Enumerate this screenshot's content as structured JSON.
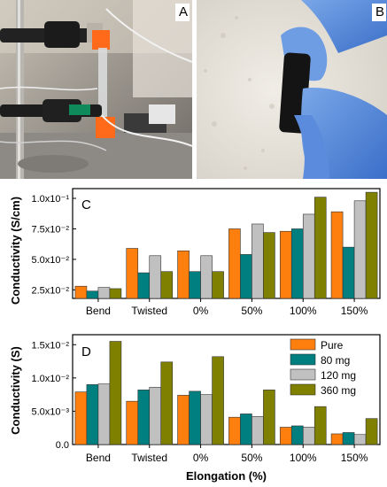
{
  "panels": {
    "a": {
      "letter": "A"
    },
    "b": {
      "letter": "B"
    }
  },
  "colors": {
    "series": [
      "#ff7f0e",
      "#007f80",
      "#c0c0c0",
      "#808000"
    ],
    "bar_stroke": "#333333"
  },
  "chart_data": [
    {
      "panel": "C",
      "type": "bar",
      "categories": [
        "Bend",
        "Twisted",
        "0%",
        "50%",
        "100%",
        "150%"
      ],
      "series": [
        {
          "name": "Pure",
          "values": [
            0.028,
            0.059,
            0.057,
            0.075,
            0.073,
            0.089
          ]
        },
        {
          "name": "80 mg",
          "values": [
            0.024,
            0.039,
            0.04,
            0.054,
            0.075,
            0.06
          ]
        },
        {
          "name": "120 mg",
          "values": [
            0.027,
            0.053,
            0.053,
            0.079,
            0.087,
            0.098
          ]
        },
        {
          "name": "360 mg",
          "values": [
            0.026,
            0.04,
            0.04,
            0.072,
            0.101,
            0.105
          ]
        }
      ],
      "ylabel": "Conductivity (S/cm)",
      "ylim": [
        0.018,
        0.108
      ],
      "yticks": [
        {
          "value": 0.025,
          "label": "2.5x10⁻²"
        },
        {
          "value": 0.05,
          "label": "5.0x10⁻²"
        },
        {
          "value": 0.075,
          "label": "7.5x10⁻²"
        },
        {
          "value": 0.1,
          "label": "1.0x10⁻¹"
        }
      ],
      "grid": false,
      "legend": "none"
    },
    {
      "panel": "D",
      "type": "bar",
      "categories": [
        "Bend",
        "Twisted",
        "0%",
        "50%",
        "100%",
        "150%"
      ],
      "series": [
        {
          "name": "Pure",
          "values": [
            0.0079,
            0.0065,
            0.0074,
            0.0041,
            0.0026,
            0.0016
          ]
        },
        {
          "name": "80 mg",
          "values": [
            0.009,
            0.0082,
            0.008,
            0.0046,
            0.0028,
            0.0018
          ]
        },
        {
          "name": "120 mg",
          "values": [
            0.0091,
            0.0086,
            0.0075,
            0.0042,
            0.0026,
            0.0015
          ]
        },
        {
          "name": "360 mg",
          "values": [
            0.0155,
            0.0124,
            0.0132,
            0.0082,
            0.0057,
            0.0039
          ]
        }
      ],
      "xlabel": "Elongation (%)",
      "ylabel": "Conductivity (S)",
      "ylim": [
        0,
        0.0165
      ],
      "yticks": [
        {
          "value": 0,
          "label": "0.0"
        },
        {
          "value": 0.005,
          "label": "5.0x10⁻³"
        },
        {
          "value": 0.01,
          "label": "1.0x10⁻²"
        },
        {
          "value": 0.015,
          "label": "1.5x10⁻²"
        }
      ],
      "grid": false,
      "legend": "top-right"
    }
  ]
}
